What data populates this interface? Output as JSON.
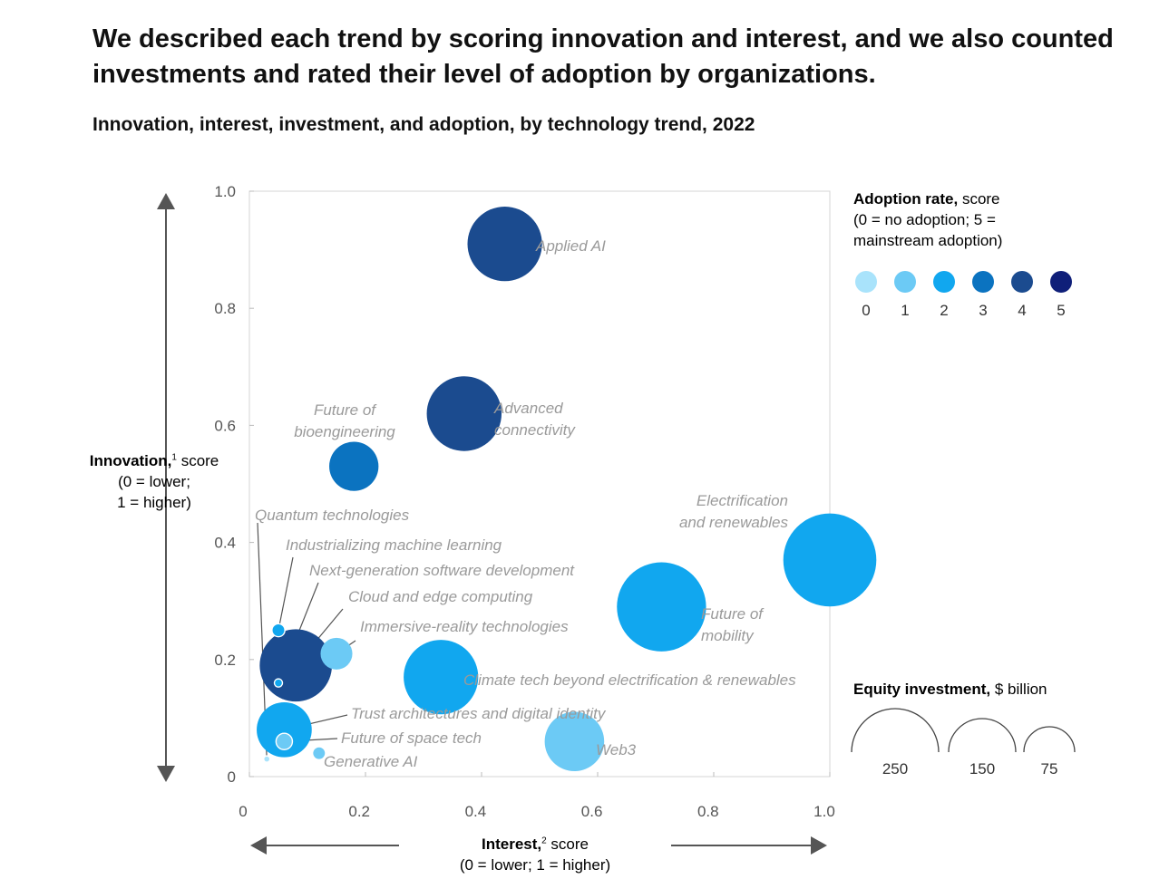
{
  "title": "We described each trend by scoring innovation and interest, and we also counted investments and rated their level of adoption by organizations.",
  "subtitle": "Innovation, interest, investment, and adoption, by technology trend, 2022",
  "y_axis": {
    "label_bold": "Innovation,",
    "sup": "1",
    "label_rest": " score",
    "line2": "(0 = lower;",
    "line3": "1 = higher)"
  },
  "x_axis": {
    "label_bold": "Interest,",
    "sup": "2",
    "label_rest": " score",
    "line2": "(0 = lower; 1 = higher)"
  },
  "adoption_legend": {
    "title_bold": "Adoption rate,",
    "title_rest": " score",
    "line2": "(0 = no adoption; 5 =",
    "line3": "mainstream adoption)",
    "levels": [
      "0",
      "1",
      "2",
      "3",
      "4",
      "5"
    ],
    "colors": [
      "#a9e3fb",
      "#6ccaf5",
      "#11a7ef",
      "#0b73c0",
      "#1b4b8f",
      "#0f1f79"
    ]
  },
  "investment_legend": {
    "title_bold": "Equity investment,",
    "title_rest": " $ billion",
    "sizes": [
      250,
      150,
      75
    ]
  },
  "chart_data": {
    "type": "scatter",
    "title": "Innovation, interest, investment, and adoption, by technology trend, 2022",
    "xlabel": "Interest, score",
    "ylabel": "Innovation, score",
    "xlim": [
      0,
      1.0
    ],
    "ylim": [
      0,
      1.0
    ],
    "x_ticks": [
      "0",
      "0.2",
      "0.4",
      "0.6",
      "0.8",
      "1.0"
    ],
    "y_ticks": [
      "0",
      "0.2",
      "0.4",
      "0.6",
      "0.8",
      "1.0"
    ],
    "size_encodes": "Equity investment, $ billion",
    "color_encodes": "Adoption rate, score",
    "points": [
      {
        "name": "Applied AI",
        "x": 0.44,
        "y": 0.91,
        "adoption": 4,
        "investment": 165
      },
      {
        "name": "Advanced connectivity",
        "x": 0.37,
        "y": 0.62,
        "adoption": 4,
        "investment": 166
      },
      {
        "name": "Future of bioengineering",
        "x": 0.18,
        "y": 0.53,
        "adoption": 3,
        "investment": 72
      },
      {
        "name": "Electrification and renewables",
        "x": 1.0,
        "y": 0.37,
        "adoption": 2,
        "investment": 257
      },
      {
        "name": "Future of mobility",
        "x": 0.71,
        "y": 0.29,
        "adoption": 2,
        "investment": 236
      },
      {
        "name": "Quantum technologies",
        "x": 0.03,
        "y": 0.03,
        "adoption": 0,
        "investment": 1
      },
      {
        "name": "Industrializing machine learning",
        "x": 0.05,
        "y": 0.25,
        "adoption": 2,
        "investment": 5
      },
      {
        "name": "Next-generation software development",
        "x": 0.05,
        "y": 0.16,
        "adoption": 2,
        "investment": 2
      },
      {
        "name": "Cloud and edge computing",
        "x": 0.08,
        "y": 0.19,
        "adoption": 4,
        "investment": 155
      },
      {
        "name": "Immersive-reality technologies",
        "x": 0.15,
        "y": 0.21,
        "adoption": 1,
        "investment": 30
      },
      {
        "name": "Climate tech beyond electrification & renewables",
        "x": 0.33,
        "y": 0.17,
        "adoption": 2,
        "investment": 165
      },
      {
        "name": "Trust architectures and digital identity",
        "x": 0.06,
        "y": 0.08,
        "adoption": 2,
        "investment": 90
      },
      {
        "name": "Future of space tech",
        "x": 0.06,
        "y": 0.06,
        "adoption": 1,
        "investment": 8
      },
      {
        "name": "Generative AI",
        "x": 0.12,
        "y": 0.04,
        "adoption": 1,
        "investment": 5
      },
      {
        "name": "Web3",
        "x": 0.56,
        "y": 0.06,
        "adoption": 1,
        "investment": 105
      }
    ]
  }
}
